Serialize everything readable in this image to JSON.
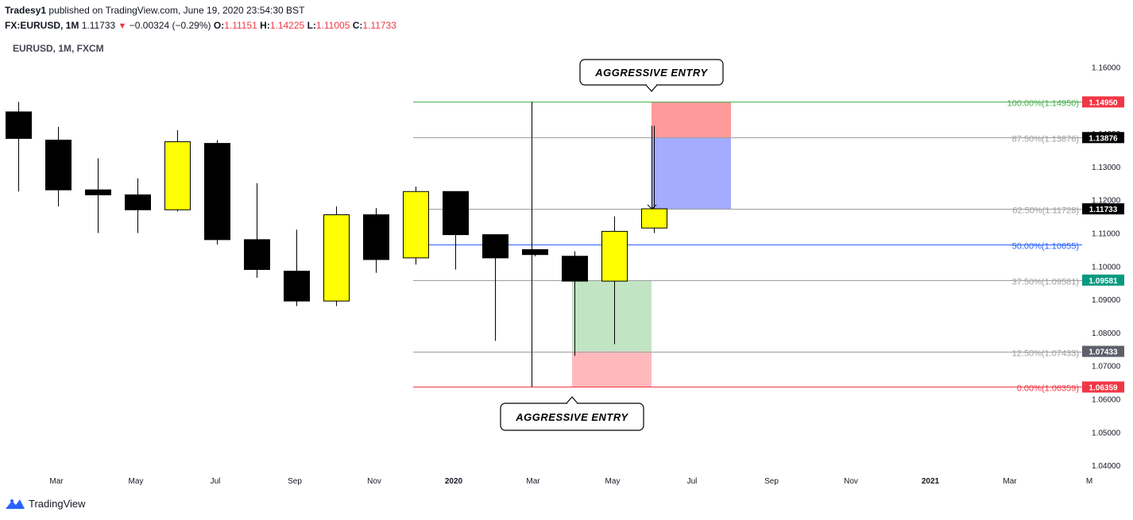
{
  "header": {
    "publisher": "Tradesy1",
    "published_text": "published on TradingView.com, June 19, 2020 23:54:30 BST",
    "symbol_interval": "FX:EURUSD, 1M",
    "last": "1.11733",
    "change": "−0.00324 (−0.29%)",
    "open_label": "O:",
    "open": "1.11151",
    "high_label": "H:",
    "high": "1.14225",
    "low_label": "L:",
    "low": "1.11005",
    "close_label": "C:",
    "close": "1.11733"
  },
  "symbol_label": "EURUSD, 1M, FXCM",
  "brand": {
    "name": "TradingView",
    "icon": "tradingview-logo-icon"
  },
  "chart_data": {
    "type": "candlestick",
    "ylim": [
      1.04,
      1.165
    ],
    "y_ticks": [
      "1.16000",
      "1.15000",
      "1.14000",
      "1.13000",
      "1.12000",
      "1.11000",
      "1.10000",
      "1.09000",
      "1.08000",
      "1.07000",
      "1.06000",
      "1.05000",
      "1.04000"
    ],
    "y_tick_values": [
      1.16,
      1.15,
      1.14,
      1.13,
      1.12,
      1.11,
      1.1,
      1.09,
      1.08,
      1.07,
      1.06,
      1.05,
      1.04
    ],
    "x_ticks": [
      {
        "label": "Mar",
        "month": 1
      },
      {
        "label": "May",
        "month": 3
      },
      {
        "label": "Jul",
        "month": 5
      },
      {
        "label": "Sep",
        "month": 7
      },
      {
        "label": "Nov",
        "month": 9
      },
      {
        "label": "2020",
        "month": 11,
        "bold": true
      },
      {
        "label": "Mar",
        "month": 13
      },
      {
        "label": "May",
        "month": 15
      },
      {
        "label": "Jul",
        "month": 17
      },
      {
        "label": "Sep",
        "month": 19
      },
      {
        "label": "Nov",
        "month": 21
      },
      {
        "label": "2021",
        "month": 23,
        "bold": true
      },
      {
        "label": "Mar",
        "month": 25
      },
      {
        "label": "M",
        "month": 27
      }
    ],
    "candles": [
      {
        "o": 1.1465,
        "h": 1.1495,
        "l": 1.1225,
        "c": 1.1385
      },
      {
        "o": 1.138,
        "h": 1.142,
        "l": 1.118,
        "c": 1.123
      },
      {
        "o": 1.123,
        "h": 1.1325,
        "l": 1.11,
        "c": 1.1215
      },
      {
        "o": 1.1215,
        "h": 1.1265,
        "l": 1.11,
        "c": 1.117
      },
      {
        "o": 1.117,
        "h": 1.141,
        "l": 1.1165,
        "c": 1.1375
      },
      {
        "o": 1.137,
        "h": 1.138,
        "l": 1.1065,
        "c": 1.108
      },
      {
        "o": 1.108,
        "h": 1.125,
        "l": 1.0965,
        "c": 1.099
      },
      {
        "o": 1.0985,
        "h": 1.111,
        "l": 1.088,
        "c": 1.0895
      },
      {
        "o": 1.0895,
        "h": 1.118,
        "l": 1.088,
        "c": 1.1155
      },
      {
        "o": 1.1155,
        "h": 1.1175,
        "l": 1.098,
        "c": 1.102
      },
      {
        "o": 1.1025,
        "h": 1.124,
        "l": 1.1005,
        "c": 1.1225
      },
      {
        "o": 1.1225,
        "h": 1.1225,
        "l": 1.099,
        "c": 1.1095
      },
      {
        "o": 1.1095,
        "h": 1.1095,
        "l": 1.0775,
        "c": 1.1025
      },
      {
        "o": 1.105,
        "h": 1.105,
        "l": 1.103,
        "c": 1.1035
      },
      {
        "o": 1.103,
        "h": 1.1045,
        "l": 1.073,
        "c": 1.0955
      },
      {
        "o": 1.0955,
        "h": 1.115,
        "l": 1.0765,
        "c": 1.1105
      },
      {
        "o": 1.1115,
        "h": 1.1423,
        "l": 1.11,
        "c": 1.1173
      }
    ],
    "bull_color": "#ffff00",
    "bear_color": "#000000",
    "fib_levels": [
      {
        "label": "100.00%(1.14950)",
        "value": 1.1495,
        "color": "#4caf50",
        "badge": "1.14950",
        "badge_color": "#f23645"
      },
      {
        "label": "87.50%(1.13876)",
        "value": 1.13876,
        "color": "#9e9e9e",
        "badge": "1.13876",
        "badge_color": "#000000"
      },
      {
        "label": "62.50%(1.11728)",
        "value": 1.11728,
        "color": "#9e9e9e",
        "badge": "1.11733",
        "badge_color": "#000000"
      },
      {
        "label": "50.00%(1.10655)",
        "value": 1.10655,
        "color": "#2962ff",
        "badge": null
      },
      {
        "label": "37.50%(1.09581)",
        "value": 1.09581,
        "color": "#9e9e9e",
        "badge": "1.09581",
        "badge_color": "#089981"
      },
      {
        "label": "12.50%(1.07433)",
        "value": 1.07433,
        "color": "#9e9e9e",
        "badge": "1.07433",
        "badge_color": "#5d606b"
      },
      {
        "label": "0.00%(1.06359)",
        "value": 1.06359,
        "color": "#f23645",
        "badge": "1.06359",
        "badge_color": "#f23645"
      }
    ],
    "annotations": [
      {
        "text": "AGGRESSIVE ENTRY",
        "position": "top"
      },
      {
        "text": "AGGRESSIVE ENTRY",
        "position": "bottom"
      }
    ]
  }
}
